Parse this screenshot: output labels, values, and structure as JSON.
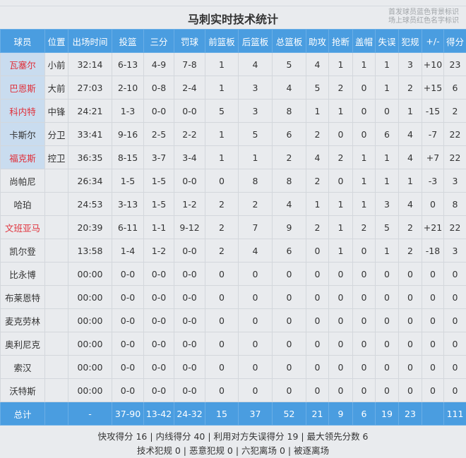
{
  "title": "马刺实时技术统计",
  "legend": [
    "首发球员蓝色背景标识",
    "场上球员红色名字标识"
  ],
  "columns": [
    "球员",
    "位置",
    "出场时间",
    "投篮",
    "三分",
    "罚球",
    "前篮板",
    "后篮板",
    "总篮板",
    "助攻",
    "抢断",
    "盖帽",
    "失误",
    "犯规",
    "+/-",
    "得分"
  ],
  "players": [
    {
      "name": "瓦塞尔",
      "starter": true,
      "on_court": true,
      "cells": [
        "小前",
        "32:14",
        "6-13",
        "4-9",
        "7-8",
        "1",
        "4",
        "5",
        "4",
        "1",
        "1",
        "1",
        "3",
        "+10",
        "23"
      ]
    },
    {
      "name": "巴恩斯",
      "starter": true,
      "on_court": true,
      "cells": [
        "大前",
        "27:03",
        "2-10",
        "0-8",
        "2-4",
        "1",
        "3",
        "4",
        "5",
        "2",
        "0",
        "1",
        "2",
        "+15",
        "6"
      ]
    },
    {
      "name": "科内特",
      "starter": true,
      "on_court": true,
      "cells": [
        "中锋",
        "24:21",
        "1-3",
        "0-0",
        "0-0",
        "5",
        "3",
        "8",
        "1",
        "1",
        "0",
        "0",
        "1",
        "-15",
        "2"
      ]
    },
    {
      "name": "卡斯尔",
      "starter": true,
      "on_court": false,
      "cells": [
        "分卫",
        "33:41",
        "9-16",
        "2-5",
        "2-2",
        "1",
        "5",
        "6",
        "2",
        "0",
        "0",
        "6",
        "4",
        "-7",
        "22"
      ]
    },
    {
      "name": "福克斯",
      "starter": true,
      "on_court": true,
      "cells": [
        "控卫",
        "36:35",
        "8-15",
        "3-7",
        "3-4",
        "1",
        "1",
        "2",
        "4",
        "2",
        "1",
        "1",
        "4",
        "+7",
        "22"
      ]
    },
    {
      "name": "尚帕尼",
      "starter": false,
      "on_court": false,
      "cells": [
        "",
        "26:34",
        "1-5",
        "1-5",
        "0-0",
        "0",
        "8",
        "8",
        "2",
        "0",
        "1",
        "1",
        "1",
        "-3",
        "3"
      ]
    },
    {
      "name": "哈珀",
      "starter": false,
      "on_court": false,
      "cells": [
        "",
        "24:53",
        "3-13",
        "1-5",
        "1-2",
        "2",
        "2",
        "4",
        "1",
        "1",
        "1",
        "3",
        "4",
        "0",
        "8"
      ]
    },
    {
      "name": "文班亚马",
      "starter": false,
      "on_court": true,
      "cells": [
        "",
        "20:39",
        "6-11",
        "1-1",
        "9-12",
        "2",
        "7",
        "9",
        "2",
        "1",
        "2",
        "5",
        "2",
        "+21",
        "22"
      ]
    },
    {
      "name": "凯尔登",
      "starter": false,
      "on_court": false,
      "cells": [
        "",
        "13:58",
        "1-4",
        "1-2",
        "0-0",
        "2",
        "4",
        "6",
        "0",
        "1",
        "0",
        "1",
        "2",
        "-18",
        "3"
      ]
    },
    {
      "name": "比永博",
      "starter": false,
      "on_court": false,
      "cells": [
        "",
        "00:00",
        "0-0",
        "0-0",
        "0-0",
        "0",
        "0",
        "0",
        "0",
        "0",
        "0",
        "0",
        "0",
        "0",
        "0"
      ]
    },
    {
      "name": "布莱恩特",
      "starter": false,
      "on_court": false,
      "cells": [
        "",
        "00:00",
        "0-0",
        "0-0",
        "0-0",
        "0",
        "0",
        "0",
        "0",
        "0",
        "0",
        "0",
        "0",
        "0",
        "0"
      ]
    },
    {
      "name": "麦克劳林",
      "starter": false,
      "on_court": false,
      "cells": [
        "",
        "00:00",
        "0-0",
        "0-0",
        "0-0",
        "0",
        "0",
        "0",
        "0",
        "0",
        "0",
        "0",
        "0",
        "0",
        "0"
      ]
    },
    {
      "name": "奥利尼克",
      "starter": false,
      "on_court": false,
      "cells": [
        "",
        "00:00",
        "0-0",
        "0-0",
        "0-0",
        "0",
        "0",
        "0",
        "0",
        "0",
        "0",
        "0",
        "0",
        "0",
        "0"
      ]
    },
    {
      "name": "索汉",
      "starter": false,
      "on_court": false,
      "cells": [
        "",
        "00:00",
        "0-0",
        "0-0",
        "0-0",
        "0",
        "0",
        "0",
        "0",
        "0",
        "0",
        "0",
        "0",
        "0",
        "0"
      ]
    },
    {
      "name": "沃特斯",
      "starter": false,
      "on_court": false,
      "cells": [
        "",
        "00:00",
        "0-0",
        "0-0",
        "0-0",
        "0",
        "0",
        "0",
        "0",
        "0",
        "0",
        "0",
        "0",
        "0",
        "0"
      ]
    }
  ],
  "totals": [
    "总计",
    "",
    "-",
    "37-90",
    "13-42",
    "24-32",
    "15",
    "37",
    "52",
    "21",
    "9",
    "6",
    "19",
    "23",
    "",
    "111"
  ],
  "footer": [
    "快攻得分 16 | 内线得分 40 | 利用对方失误得分 19 | 最大领先分数 6",
    "技术犯规 0 | 恶意犯规 0 | 六犯离场 0 | 被逐离场"
  ],
  "colors": {
    "header": "#4a9de0",
    "starter_bg": "#c9dcef",
    "on_court_name": "#e0303a"
  }
}
